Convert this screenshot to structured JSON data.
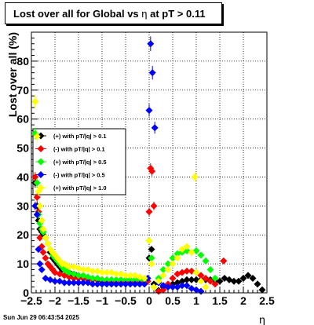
{
  "title": {
    "prefix": "Lost over all for Global vs",
    "variable": "η",
    "suffix": "at pT > 0.11"
  },
  "footer": {
    "timestamp": "Sun Jun 29 06:43:54 2025"
  },
  "chart_data": {
    "type": "scatter",
    "ylabel": "Lost over all (%)",
    "xlabel": "η",
    "xlim": [
      -2.5,
      2.5
    ],
    "ylim": [
      0,
      90
    ],
    "x_ticks": [
      "−2.5",
      "−2",
      "−1.5",
      "−1",
      "−0.5",
      "0",
      "0.5",
      "1",
      "1.5",
      "2",
      "2.5"
    ],
    "y_ticks": [
      "0",
      "10",
      "20",
      "30",
      "40",
      "50",
      "60",
      "70",
      "80"
    ],
    "grid": true,
    "legend_position": "left",
    "series": [
      {
        "name": "(+) with pT/|q| > 0.1",
        "color": "#000000",
        "x": [
          -2.42,
          -2.38,
          -2.35,
          -2.32,
          -2.28,
          -2.25,
          -2.2,
          -2.15,
          -2.1,
          -2.05,
          -2.0,
          -1.95,
          -1.9,
          -1.85,
          -1.8,
          -1.75,
          -1.7,
          -1.65,
          -1.6,
          -1.55,
          -1.5,
          -1.4,
          -1.3,
          -1.2,
          -1.1,
          -1.0,
          -0.9,
          -0.8,
          -0.7,
          -0.6,
          -0.5,
          -0.4,
          -0.3,
          -0.2,
          -0.1,
          0.0,
          0.05,
          0.1,
          0.2,
          0.3,
          0.4,
          0.5,
          0.6,
          0.7,
          0.8,
          0.9,
          1.0,
          1.1,
          1.2,
          1.3,
          1.4,
          1.5,
          1.6,
          1.7,
          1.8,
          1.9,
          2.0,
          2.1,
          2.2,
          2.3,
          2.4
        ],
        "y": [
          38,
          30,
          25,
          22,
          21,
          20,
          19,
          17,
          14,
          12,
          11,
          10,
          9,
          8,
          8,
          7,
          7,
          6.5,
          6,
          6,
          5.5,
          5,
          5,
          4.5,
          4.5,
          4,
          4,
          4,
          4,
          4,
          4,
          4,
          4,
          4,
          4,
          12,
          15,
          3,
          0.8,
          2,
          2.5,
          3,
          3.5,
          4,
          4.5,
          4.5,
          4.5,
          4.5,
          4.5,
          4.5,
          4,
          4,
          5,
          4.5,
          4,
          4,
          5,
          6,
          5,
          3,
          1
        ]
      },
      {
        "name": "(-) with pT/|q| > 0.1",
        "color": "#ff0000",
        "x": [
          -2.42,
          -2.38,
          -2.35,
          -2.32,
          -2.28,
          -2.25,
          -2.2,
          -2.15,
          -2.1,
          -2.05,
          -2.0,
          -1.9,
          -1.8,
          -1.7,
          -1.6,
          -1.5,
          -1.4,
          -1.3,
          -1.2,
          -1.1,
          -1.0,
          -0.9,
          -0.8,
          -0.7,
          -0.6,
          -0.5,
          -0.4,
          -0.3,
          -0.2,
          -0.1,
          -0.03,
          0.0,
          0.03,
          0.06,
          0.1,
          0.2,
          0.3,
          0.4,
          0.5,
          0.6,
          0.7,
          0.8,
          0.9,
          1.0,
          1.1,
          1.2,
          1.3,
          1.4,
          1.58
        ],
        "y": [
          40,
          33,
          28,
          19,
          16,
          14,
          12,
          10,
          9,
          8,
          7,
          6.5,
          6,
          5.5,
          5,
          5,
          5,
          4.5,
          4.5,
          4.5,
          4.5,
          4,
          4,
          4,
          4,
          4,
          4,
          4,
          4,
          4,
          4,
          28,
          43,
          42,
          30,
          0.5,
          1,
          3,
          5,
          6.5,
          7,
          7.5,
          7.5,
          7,
          6,
          5,
          4,
          3,
          11
        ]
      },
      {
        "name": "(+) with pT/|q| > 0.5",
        "color": "#00ff00",
        "x": [
          -2.42,
          -2.38,
          -2.35,
          -2.32,
          -2.28,
          -2.25,
          -2.2,
          -2.15,
          -2.1,
          -2.05,
          -2.0,
          -1.95,
          -1.9,
          -1.85,
          -1.8,
          -1.75,
          -1.7,
          -1.6,
          -1.5,
          -1.4,
          -1.3,
          -1.2,
          -1.1,
          -1.0,
          -0.9,
          -0.8,
          -0.7,
          -0.6,
          -0.5,
          -0.4,
          -0.3,
          -0.2,
          -0.1,
          0.0,
          0.05,
          0.1,
          0.2,
          0.3,
          0.4,
          0.5,
          0.6,
          0.7,
          0.8,
          0.9,
          1.0,
          1.1,
          1.2,
          1.3,
          1.4
        ],
        "y": [
          55,
          38,
          27,
          24,
          22,
          21,
          19,
          17,
          15,
          13,
          12,
          11,
          10,
          9,
          8,
          7.5,
          7,
          6.5,
          6,
          6,
          5.5,
          5,
          5,
          4.5,
          4.5,
          4.5,
          4.5,
          4.5,
          4.5,
          4.5,
          4.5,
          4.5,
          4.5,
          18,
          12,
          2,
          5,
          8,
          10,
          12,
          13.5,
          14,
          14.5,
          14,
          14.5,
          13,
          11,
          8,
          5
        ]
      },
      {
        "name": "(-) with pT/|q| > 0.5",
        "color": "#0000ff",
        "x": [
          -2.42,
          -2.38,
          -2.35,
          -2.32,
          -2.28,
          -2.2,
          -2.1,
          -2.0,
          -1.9,
          -1.8,
          -1.7,
          -1.6,
          -1.5,
          -1.4,
          -1.3,
          -1.2,
          -1.1,
          -1.0,
          -0.9,
          -0.8,
          -0.7,
          -0.6,
          -0.5,
          -0.4,
          -0.3,
          -0.2,
          -0.1,
          -0.03,
          0.0,
          0.03,
          0.07,
          0.12,
          0.2,
          0.3,
          0.4,
          0.5,
          0.6,
          0.7,
          0.8,
          0.9,
          1.0,
          1.1
        ],
        "y": [
          30,
          27,
          15,
          10,
          8,
          5,
          4.5,
          4,
          4,
          3.5,
          3.5,
          3.5,
          3.5,
          3.5,
          3.5,
          3,
          3,
          3,
          3,
          3,
          3,
          3,
          3,
          3,
          3,
          3,
          3,
          5,
          63,
          86,
          76,
          57,
          3.5,
          2.5,
          2,
          2,
          2,
          2.5,
          2.5,
          1.5,
          1,
          0.5
        ]
      },
      {
        "name": "(+) with pT/|q| > 1.0",
        "color": "#ffff00",
        "x": [
          -2.42,
          -2.38,
          -2.35,
          -2.32,
          -2.28,
          -2.25,
          -2.2,
          -2.15,
          -2.1,
          -2.05,
          -2.0,
          -1.95,
          -1.9,
          -1.85,
          -1.8,
          -1.75,
          -1.7,
          -1.6,
          -1.5,
          -1.4,
          -1.3,
          -1.2,
          -1.1,
          -1.0,
          -0.9,
          -0.8,
          -0.7,
          -0.6,
          -0.5,
          -0.4,
          -0.3,
          -0.2,
          -0.1,
          0.0,
          0.05,
          0.1,
          0.2,
          0.3,
          0.4,
          0.5,
          0.6,
          0.7,
          0.8,
          0.9,
          0.97,
          1.0,
          1.1,
          1.2
        ],
        "y": [
          66,
          54,
          35,
          30,
          25,
          22,
          19,
          17,
          15,
          14,
          13,
          12,
          11,
          10,
          10,
          9.5,
          9,
          9,
          8.5,
          8,
          8,
          7.5,
          7.5,
          7,
          7,
          7,
          6.5,
          6.5,
          6,
          6,
          6,
          5.5,
          5,
          18,
          10,
          2,
          4,
          6,
          8,
          10,
          12,
          15,
          16,
          14,
          40,
          7,
          4,
          2
        ]
      }
    ]
  }
}
